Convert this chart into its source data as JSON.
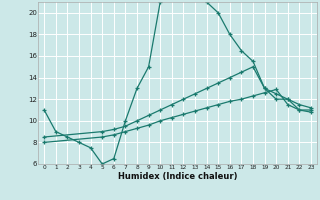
{
  "xlabel": "Humidex (Indice chaleur)",
  "bg_color": "#cce8e8",
  "grid_color": "#b8d8d8",
  "line_color": "#1a7a6e",
  "xlim": [
    -0.5,
    23.5
  ],
  "ylim": [
    6,
    21
  ],
  "yticks": [
    6,
    8,
    10,
    12,
    14,
    16,
    18,
    20
  ],
  "xticks": [
    0,
    1,
    2,
    3,
    4,
    5,
    6,
    7,
    8,
    9,
    10,
    11,
    12,
    13,
    14,
    15,
    16,
    17,
    18,
    19,
    20,
    21,
    22,
    23
  ],
  "series1_x": [
    0,
    1,
    2,
    3,
    4,
    5,
    6,
    7,
    8,
    9,
    10,
    11,
    12,
    13,
    14,
    15,
    16,
    17,
    18,
    19,
    20,
    21,
    22,
    23
  ],
  "series1_y": [
    11,
    9,
    8.5,
    8,
    7.5,
    6,
    6.5,
    10,
    13,
    15,
    21,
    21.5,
    22,
    21.5,
    21,
    20,
    18,
    16.5,
    15.5,
    13,
    12,
    12,
    11,
    11
  ],
  "series2_x": [
    0,
    5,
    6,
    7,
    8,
    9,
    10,
    11,
    12,
    13,
    14,
    15,
    16,
    17,
    18,
    19,
    20,
    21,
    22,
    23
  ],
  "series2_y": [
    8.5,
    9.0,
    9.2,
    9.5,
    10.0,
    10.5,
    11.0,
    11.5,
    12.0,
    12.5,
    13.0,
    13.5,
    14.0,
    14.5,
    15.0,
    13.0,
    12.5,
    12.0,
    11.5,
    11.2
  ],
  "series3_x": [
    0,
    5,
    6,
    7,
    8,
    9,
    10,
    11,
    12,
    13,
    14,
    15,
    16,
    17,
    18,
    19,
    20,
    21,
    22,
    23
  ],
  "series3_y": [
    8.0,
    8.5,
    8.7,
    9.0,
    9.3,
    9.6,
    10.0,
    10.3,
    10.6,
    10.9,
    11.2,
    11.5,
    11.8,
    12.0,
    12.3,
    12.6,
    12.9,
    11.5,
    11.0,
    10.8
  ]
}
